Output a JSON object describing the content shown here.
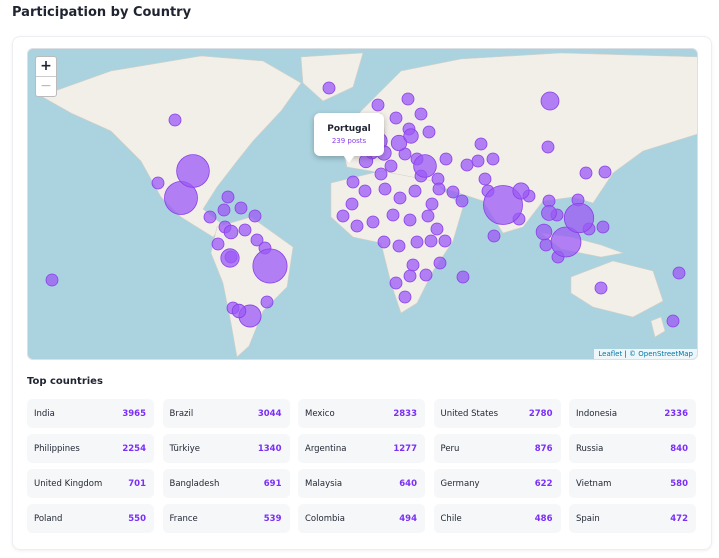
{
  "header": {
    "title": "Participation by Country"
  },
  "map": {
    "zoom": {
      "in": "+",
      "out": "−"
    },
    "tooltip": {
      "country": "Portugal",
      "posts": "239 posts"
    },
    "attribution": {
      "leaflet": "Leaflet",
      "separator": "|",
      "osm": "© OpenStreetMap"
    }
  },
  "top_countries": {
    "title": "Top countries",
    "countries": [
      {
        "name": "India",
        "posts": 3965
      },
      {
        "name": "Brazil",
        "posts": 3044
      },
      {
        "name": "Mexico",
        "posts": 2833
      },
      {
        "name": "United States",
        "posts": 2780
      },
      {
        "name": "Indonesia",
        "posts": 2336
      },
      {
        "name": "Philippines",
        "posts": 2254
      },
      {
        "name": "Türkiye",
        "posts": 1340
      },
      {
        "name": "Argentina",
        "posts": 1277
      },
      {
        "name": "Peru",
        "posts": 876
      },
      {
        "name": "Russia",
        "posts": 840
      },
      {
        "name": "United Kingdom",
        "posts": 701
      },
      {
        "name": "Bangladesh",
        "posts": 691
      },
      {
        "name": "Malaysia",
        "posts": 640
      },
      {
        "name": "Germany",
        "posts": 622
      },
      {
        "name": "Vietnam",
        "posts": 580
      },
      {
        "name": "Poland",
        "posts": 550
      },
      {
        "name": "France",
        "posts": 539
      },
      {
        "name": "Colombia",
        "posts": 494
      },
      {
        "name": "Chile",
        "posts": 486
      },
      {
        "name": "Spain",
        "posts": 472
      }
    ]
  }
}
